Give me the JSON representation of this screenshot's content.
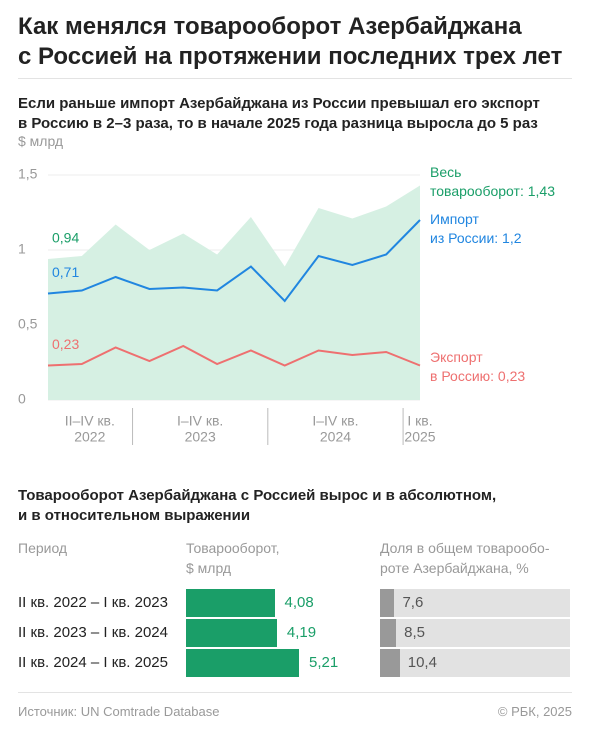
{
  "header": {
    "title": "Как менялся товарооборот Азербайджана\nс Россией на протяжении последних трех лет"
  },
  "chart_data": {
    "type": "line",
    "title": "Если раньше импорт Азербайджана из России превышал его экспорт\nв Россию в 2–3 раза, то в начале 2025 года разница выросла до 5 раз",
    "y_label": "$ млрд",
    "categories": [
      null,
      null,
      null,
      null,
      null,
      null,
      null,
      null,
      null,
      null,
      null,
      null
    ],
    "x_groups": [
      {
        "period": "II–IV кв.",
        "year": "2022",
        "quarters": 3
      },
      {
        "period": "I–IV кв.",
        "year": "2023",
        "quarters": 4
      },
      {
        "period": "I–IV кв.",
        "year": "2024",
        "quarters": 4
      },
      {
        "period": "I кв.",
        "year": "2025",
        "quarters": 1
      }
    ],
    "ylim": [
      0,
      1.5
    ],
    "yticks": [
      0,
      {
        "value": 0.5,
        "label": "0,5"
      },
      1,
      {
        "value": 1.5,
        "label": "1,5"
      }
    ],
    "series": [
      {
        "name": "Весь\nтоварооборот: 1,43",
        "kind": "area",
        "color": "#1a9e68",
        "fill": "#d6f0e3",
        "values": [
          0.94,
          0.96,
          1.17,
          1.0,
          1.11,
          0.97,
          1.22,
          0.89,
          1.28,
          1.21,
          1.29,
          1.43
        ],
        "value_labels": [
          "0,94",
          null,
          null,
          null,
          null,
          null,
          null,
          null,
          null,
          null,
          null,
          null
        ]
      },
      {
        "name": "Импорт\nиз России: 1,2",
        "kind": "line",
        "color": "#2186e0",
        "values": [
          0.71,
          0.73,
          0.82,
          0.74,
          0.75,
          0.73,
          0.89,
          0.66,
          0.96,
          0.9,
          0.97,
          1.2
        ],
        "value_labels": [
          "0,71",
          null,
          null,
          null,
          null,
          null,
          null,
          null,
          null,
          null,
          null,
          null
        ]
      },
      {
        "name": "Экспорт\nв Россию: 0,23",
        "kind": "line",
        "color": "#ee7070",
        "values": [
          0.23,
          0.24,
          0.35,
          0.26,
          0.36,
          0.24,
          0.33,
          0.23,
          0.33,
          0.3,
          0.32,
          0.23
        ],
        "value_labels": [
          "0,23",
          null,
          null,
          null,
          null,
          null,
          null,
          null,
          null,
          null,
          null,
          null
        ]
      }
    ]
  },
  "table": {
    "title": "Товарооборот Азербайджана с Россией вырос и в абсолютном,\nи в относительном выражении",
    "columns": [
      "Период",
      "Товарооборот,\n$ млрд",
      "Доля в общем товарообо-\nроте Азербайджана, %"
    ],
    "bar_color": "#1a9e68",
    "share_color": "#999999",
    "track_color": "#e2e2e2",
    "rows": [
      {
        "period": "II кв. 2022 – I кв. 2023",
        "value": 4.08,
        "value_label": "4,08",
        "share": 7.6,
        "share_label": "7,6"
      },
      {
        "period": "II кв. 2023 – I кв. 2024",
        "value": 4.19,
        "value_label": "4,19",
        "share": 8.5,
        "share_label": "8,5"
      },
      {
        "period": "II кв. 2024 – I кв. 2025",
        "value": 5.21,
        "value_label": "5,21",
        "share": 10.4,
        "share_label": "10,4"
      }
    ]
  },
  "footer": {
    "source": "Источник: UN Comtrade Database",
    "copyright": "© РБК, 2025"
  }
}
